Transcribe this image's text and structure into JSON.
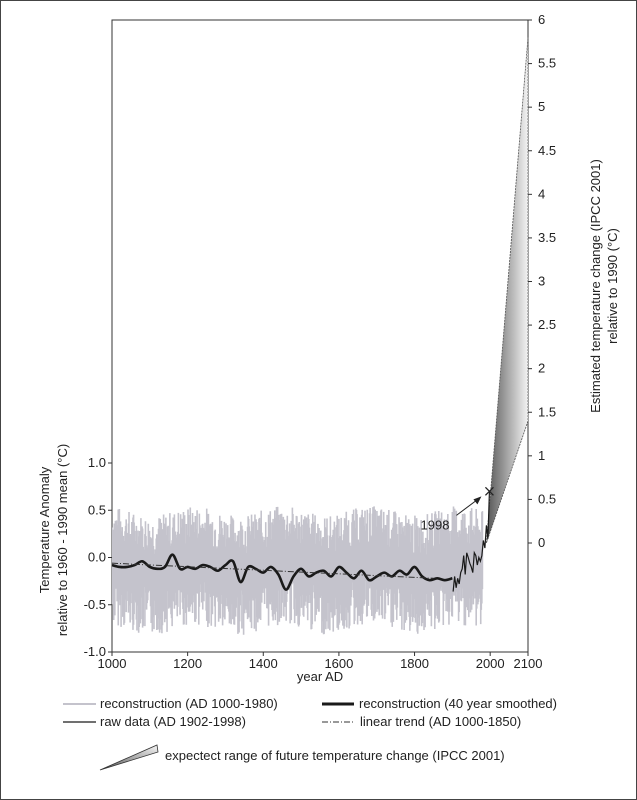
{
  "chart_data": {
    "type": "line",
    "xlabel": "year AD",
    "ylabel_left": [
      "Temperature Anomaly",
      "relative to 1960 - 1990 mean (°C)"
    ],
    "ylabel_right": [
      "Estimated temperature change (IPCC 2001)",
      "relative to 1990 (°C)"
    ],
    "xlim": [
      1000,
      2100
    ],
    "ylim_left": [
      -1.0,
      1.0
    ],
    "ylim_right": [
      0,
      6
    ],
    "x_ticks": [
      "1000",
      "1200",
      "1400",
      "1600",
      "1800",
      "2000",
      "2100"
    ],
    "y_ticks_left": [
      "1.0",
      "0.5",
      "0.0",
      "-0.5",
      "-1.0"
    ],
    "y_ticks_right": [
      "6",
      "5.5",
      "5",
      "4.5",
      "4",
      "3.5",
      "3",
      "2.5",
      "2",
      "1.5",
      "1",
      "0.5",
      "0"
    ],
    "annotation": {
      "label": "1998",
      "x": 1998,
      "y": 0.7
    },
    "colors": {
      "reconstruction": "#c4c3cc",
      "smoothed": "#1a1a1a",
      "raw": "#1a1a1a",
      "trend": "#333333",
      "range_light": "#f4f4f4",
      "range_dark": "#5a5a5a"
    },
    "series": [
      {
        "name": "reconstruction (40 year smoothed)",
        "x": [
          1000,
          1020,
          1040,
          1060,
          1080,
          1100,
          1120,
          1140,
          1160,
          1180,
          1200,
          1220,
          1240,
          1260,
          1280,
          1300,
          1320,
          1340,
          1360,
          1380,
          1400,
          1420,
          1440,
          1460,
          1480,
          1500,
          1520,
          1540,
          1560,
          1580,
          1600,
          1620,
          1640,
          1660,
          1680,
          1700,
          1720,
          1740,
          1760,
          1780,
          1800,
          1820,
          1840,
          1860,
          1880,
          1900
        ],
        "y": [
          -0.08,
          -0.1,
          -0.1,
          -0.08,
          -0.04,
          -0.1,
          -0.12,
          -0.1,
          0.03,
          -0.12,
          -0.1,
          -0.12,
          -0.08,
          -0.1,
          -0.14,
          -0.08,
          -0.04,
          -0.26,
          -0.1,
          -0.12,
          -0.16,
          -0.1,
          -0.18,
          -0.34,
          -0.2,
          -0.12,
          -0.2,
          -0.16,
          -0.14,
          -0.2,
          -0.1,
          -0.16,
          -0.22,
          -0.14,
          -0.24,
          -0.2,
          -0.16,
          -0.2,
          -0.14,
          -0.18,
          -0.1,
          -0.2,
          -0.24,
          -0.22,
          -0.24,
          -0.22
        ]
      },
      {
        "name": "raw data (AD 1902-1998)",
        "x": [
          1902,
          1906,
          1910,
          1914,
          1918,
          1922,
          1926,
          1930,
          1934,
          1938,
          1942,
          1946,
          1950,
          1954,
          1958,
          1962,
          1966,
          1970,
          1974,
          1978,
          1982,
          1986,
          1990,
          1994,
          1998
        ],
        "y": [
          -0.36,
          -0.2,
          -0.32,
          -0.22,
          -0.28,
          -0.16,
          -0.12,
          0.02,
          -0.18,
          0.05,
          0.0,
          -0.06,
          -0.1,
          -0.16,
          0.05,
          0.02,
          -0.08,
          0.0,
          -0.04,
          0.02,
          0.18,
          0.1,
          0.34,
          0.2,
          0.7
        ]
      },
      {
        "name": "linear trend (AD 1000-1850)",
        "x": [
          1000,
          1850
        ],
        "y": [
          -0.06,
          -0.22
        ]
      }
    ],
    "reconstruction_band": {
      "name": "reconstruction (AD 1000-1980)",
      "envelope_upper": 0.45,
      "envelope_lower": -0.62
    },
    "future_range": {
      "name": "expectect range of future temperature change (IPCC 2001)",
      "start": {
        "x": 1990,
        "value": 0
      },
      "end": {
        "x": 2100,
        "low": 1.4,
        "high": 5.8
      }
    }
  },
  "legend": {
    "items": [
      {
        "label": "reconstruction (AD 1000-1980)"
      },
      {
        "label": "reconstruction (40 year smoothed)"
      },
      {
        "label": "raw data (AD 1902-1998)"
      },
      {
        "label": "linear trend (AD 1000-1850)"
      },
      {
        "label": "expectect range of future temperature change (IPCC 2001)"
      }
    ]
  }
}
